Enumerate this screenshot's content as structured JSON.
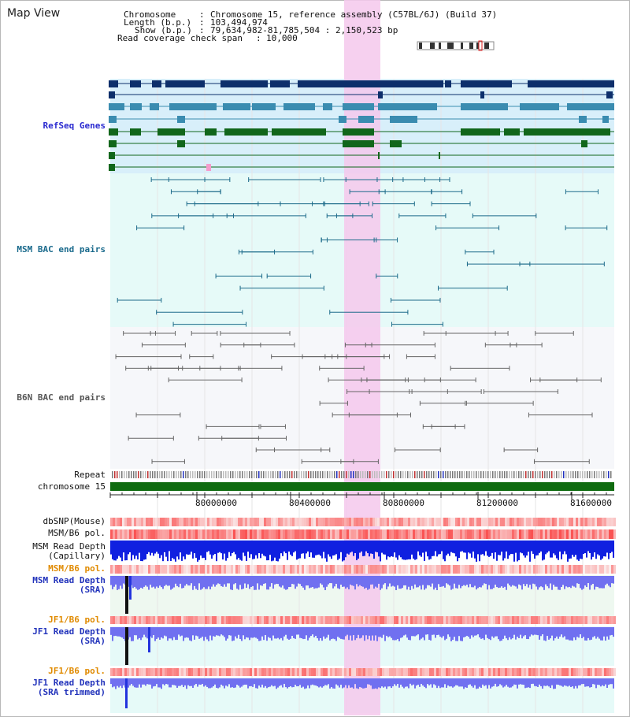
{
  "page": {
    "title": "Map View"
  },
  "header": {
    "chromosome_key": "Chromosome",
    "chromosome_value": "Chromosome 15, reference assembly (C57BL/6J) (Build 37)",
    "length_key": "Length (b.p.)",
    "length_value": "103,494,974",
    "show_key": "Show (b.p.)",
    "show_value": "79,634,982-81,785,504 : 2,150,523 bp",
    "coverage_key": "Read coverage check span",
    "coverage_value": "10,000"
  },
  "tracks": {
    "refseq": {
      "label": "RefSeq Genes",
      "color": "#3333cc"
    },
    "msm_bac": {
      "label": "MSM BAC end pairs",
      "color": "#1d6b8a"
    },
    "b6n_bac": {
      "label": "B6N BAC end pairs",
      "color": "#555555"
    },
    "repeat": {
      "label": "Repeat"
    },
    "chromosome": {
      "label": "chromosome 15"
    },
    "dbsnp": {
      "label": "dbSNP(Mouse)"
    },
    "msm_b6_pol": {
      "label": "MSM/B6 pol."
    },
    "msm_depth_cap": {
      "label": "MSM Read Depth\n(Capillary)"
    },
    "msm_b6_pol2": {
      "label": "MSM/B6 pol.",
      "color": "#e08a00"
    },
    "msm_depth_sra": {
      "label": "MSM Read Depth\n(SRA)",
      "color": "#2233bb"
    },
    "jf1_b6_pol": {
      "label": "JF1/B6 pol.",
      "color": "#e08a00"
    },
    "jf1_depth_sra": {
      "label": "JF1 Read Depth\n(SRA)",
      "color": "#2233bb"
    },
    "jf1_b6_pol2": {
      "label": "JF1/B6 pol.",
      "color": "#e08a00"
    },
    "jf1_depth_trim": {
      "label": "JF1 Read Depth\n(SRA trimmed)",
      "color": "#2233bb"
    }
  },
  "axis": {
    "ticks": [
      "80000000",
      "80400000",
      "80800000",
      "81200000",
      "81600000"
    ]
  },
  "colors": {
    "highlight": "#f4c8ec",
    "refseq_bg": "#d8effa",
    "bac_bg": "#e6faf8",
    "gene_dark": "#0d2f6b",
    "gene_mid": "#3a8cb0",
    "gene_green": "#11661b",
    "chrom_green": "#0f6b10",
    "depth_blue": "#1020e0",
    "depth_light": "#7070f0"
  }
}
